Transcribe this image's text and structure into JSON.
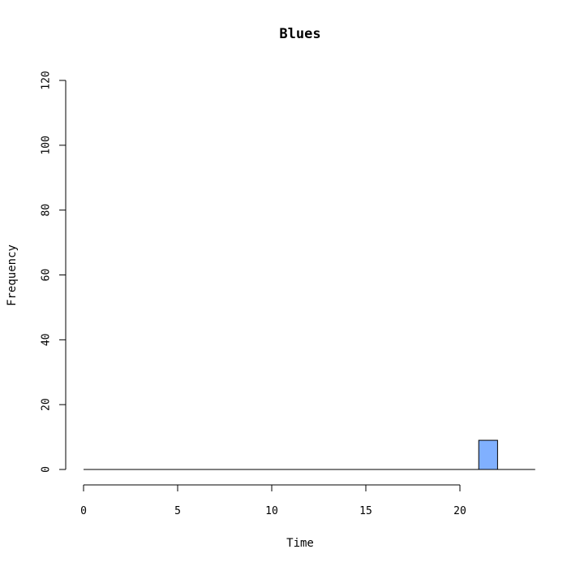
{
  "chart_data": {
    "type": "bar",
    "title": "Blues",
    "xlabel": "Time",
    "ylabel": "Frequency",
    "xlim": [
      0,
      24
    ],
    "ylim": [
      0,
      120
    ],
    "xticks": [
      0,
      5,
      10,
      15,
      20
    ],
    "yticks": [
      0,
      20,
      40,
      60,
      80,
      100,
      120
    ],
    "bins": [
      {
        "start": 21,
        "end": 22,
        "count": 9
      }
    ],
    "grid": false,
    "colors": {
      "bar_fill": "#80B0FF",
      "bar_stroke": "#000000",
      "axis": "#000000",
      "background": "#FFFFFF"
    }
  }
}
